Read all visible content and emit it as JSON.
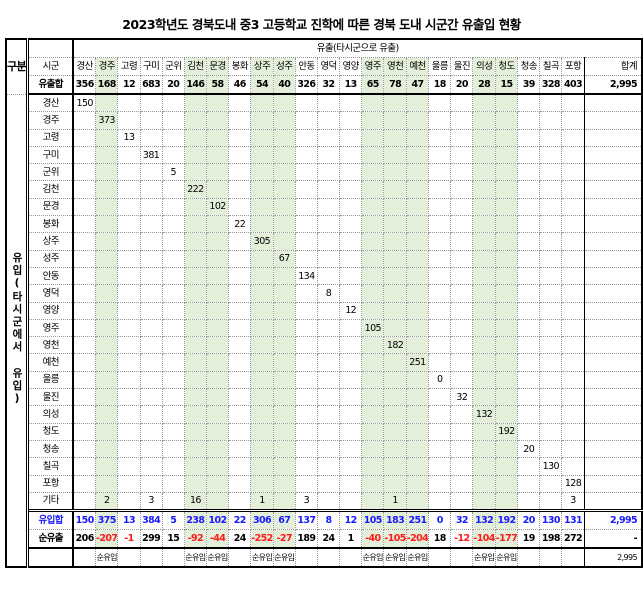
{
  "title": "2023학년도 경북도내 중3 고등학교 진학에 따른 경북 도내 시군간 유출입 현황",
  "header": {
    "category_label": "구분",
    "outflow_group_label": "유출(타시군으로 유출)",
    "region_label": "시군",
    "total_label": "합계",
    "inflow_vertical_label": "유입(타시군에서 유입)"
  },
  "columns": [
    "경산",
    "경주",
    "고령",
    "구미",
    "군위",
    "김천",
    "문경",
    "봉화",
    "상주",
    "성주",
    "안동",
    "영덕",
    "영양",
    "영주",
    "영천",
    "예천",
    "울릉",
    "울진",
    "의성",
    "청도",
    "청송",
    "칠곡",
    "포항"
  ],
  "highlight_columns": [
    "경주",
    "김천",
    "문경",
    "상주",
    "성주",
    "영주",
    "영천",
    "예천",
    "의성",
    "청도"
  ],
  "colors": {
    "highlight": "#e3efd9",
    "inflow_text": "#1a1aff",
    "negative_text": "#ff1a1a"
  },
  "outflow_total": {
    "label": "유출합",
    "values": [
      "356",
      "168",
      "12",
      "683",
      "20",
      "146",
      "58",
      "46",
      "54",
      "40",
      "326",
      "32",
      "13",
      "65",
      "78",
      "47",
      "18",
      "20",
      "28",
      "15",
      "39",
      "328",
      "403"
    ],
    "total": "2,995"
  },
  "rows": [
    {
      "label": "경산",
      "cells": {
        "경산": "150"
      }
    },
    {
      "label": "경주",
      "cells": {
        "경주": "373"
      }
    },
    {
      "label": "고령",
      "cells": {
        "고령": "13"
      }
    },
    {
      "label": "구미",
      "cells": {
        "구미": "381"
      }
    },
    {
      "label": "군위",
      "cells": {
        "군위": "5"
      }
    },
    {
      "label": "김천",
      "cells": {
        "김천": "222"
      }
    },
    {
      "label": "문경",
      "cells": {
        "문경": "102"
      }
    },
    {
      "label": "봉화",
      "cells": {
        "봉화": "22"
      }
    },
    {
      "label": "상주",
      "cells": {
        "상주": "305"
      }
    },
    {
      "label": "성주",
      "cells": {
        "성주": "67"
      }
    },
    {
      "label": "안동",
      "cells": {
        "안동": "134"
      }
    },
    {
      "label": "영덕",
      "cells": {
        "영덕": "8"
      }
    },
    {
      "label": "영양",
      "cells": {
        "영양": "12"
      }
    },
    {
      "label": "영주",
      "cells": {
        "영주": "105"
      }
    },
    {
      "label": "영천",
      "cells": {
        "영천": "182"
      }
    },
    {
      "label": "예천",
      "cells": {
        "예천": "251"
      }
    },
    {
      "label": "울릉",
      "cells": {
        "울릉": "0"
      }
    },
    {
      "label": "울진",
      "cells": {
        "울진": "32"
      }
    },
    {
      "label": "의성",
      "cells": {
        "의성": "132"
      }
    },
    {
      "label": "청도",
      "cells": {
        "청도": "192"
      }
    },
    {
      "label": "청송",
      "cells": {
        "청송": "20"
      }
    },
    {
      "label": "칠곡",
      "cells": {
        "칠곡": "130"
      }
    },
    {
      "label": "포항",
      "cells": {
        "포항": "128"
      }
    },
    {
      "label": "기타",
      "cells": {
        "경주": "2",
        "구미": "3",
        "김천": "16",
        "상주": "1",
        "안동": "3",
        "영천": "1",
        "포항": "3"
      }
    }
  ],
  "inflow_total": {
    "label": "유입합",
    "values": [
      "150",
      "375",
      "13",
      "384",
      "5",
      "238",
      "102",
      "22",
      "306",
      "67",
      "137",
      "8",
      "12",
      "105",
      "183",
      "251",
      "0",
      "32",
      "132",
      "192",
      "20",
      "130",
      "131"
    ],
    "total": "2,995"
  },
  "net_outflow": {
    "label": "순유출",
    "values": [
      "206",
      "-207",
      "-1",
      "299",
      "15",
      "-92",
      "-44",
      "24",
      "-252",
      "-27",
      "189",
      "24",
      "1",
      "-40",
      "-105",
      "-204",
      "18",
      "-12",
      "-104",
      "-177",
      "19",
      "198",
      "272"
    ],
    "total": "-"
  },
  "net_inflow_badge": {
    "label": "순유입",
    "total": "2,995"
  }
}
